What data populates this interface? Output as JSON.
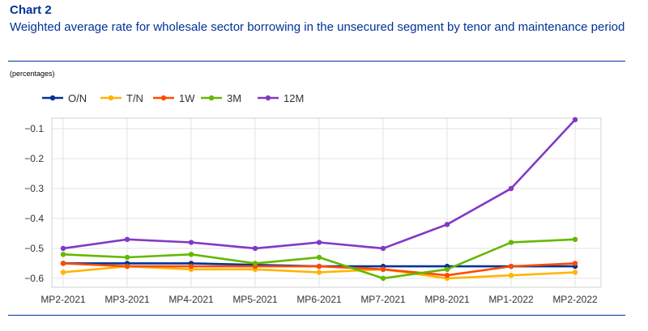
{
  "header": {
    "chart_label": "Chart 2",
    "title": "Weighted average rate for wholesale sector borrowing in the unsecured segment by tenor and maintenance period",
    "units": "(percentages)"
  },
  "chart_data": {
    "type": "line",
    "categories": [
      "MP2-2021",
      "MP3-2021",
      "MP4-2021",
      "MP5-2021",
      "MP6-2021",
      "MP7-2021",
      "MP8-2021",
      "MP1-2022",
      "MP2-2022"
    ],
    "ylim": [
      -0.63,
      -0.065
    ],
    "yticks": [
      -0.6,
      -0.5,
      -0.4,
      -0.3,
      -0.2,
      -0.1
    ],
    "ytick_labels": [
      "−0.6",
      "−0.5",
      "−0.4",
      "−0.3",
      "−0.2",
      "−0.1"
    ],
    "grid": true,
    "legend_position": "top-left",
    "series": [
      {
        "name": "O/N",
        "color": "#003299",
        "values": [
          -0.55,
          -0.55,
          -0.55,
          -0.555,
          -0.56,
          -0.56,
          -0.56,
          -0.56,
          -0.56
        ]
      },
      {
        "name": "T/N",
        "color": "#ffb400",
        "values": [
          -0.58,
          -0.56,
          -0.57,
          -0.57,
          -0.58,
          -0.57,
          -0.6,
          -0.59,
          -0.58
        ]
      },
      {
        "name": "1W",
        "color": "#ff4b00",
        "values": [
          -0.55,
          -0.56,
          -0.56,
          -0.56,
          -0.56,
          -0.57,
          -0.59,
          -0.56,
          -0.55
        ]
      },
      {
        "name": "3M",
        "color": "#65b800",
        "values": [
          -0.52,
          -0.53,
          -0.52,
          -0.55,
          -0.53,
          -0.6,
          -0.57,
          -0.48,
          -0.47
        ]
      },
      {
        "name": "12M",
        "color": "#8139c6",
        "values": [
          -0.5,
          -0.47,
          -0.48,
          -0.5,
          -0.48,
          -0.5,
          -0.42,
          -0.3,
          -0.07
        ]
      }
    ]
  }
}
